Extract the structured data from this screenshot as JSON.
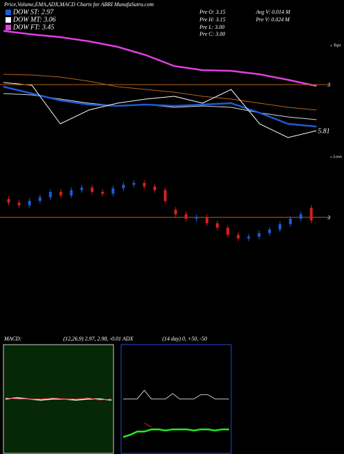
{
  "header": {
    "title": "Price,Volume,EMA,ADX,MACD Charts for ABRI MunafaSutra.com",
    "legend": [
      {
        "label": "DOW ST: 2.97",
        "color": "#1e5bd6"
      },
      {
        "label": "DOW MT: 3.06",
        "color": "#ffffff"
      },
      {
        "label": "DOW FT: 3.45",
        "color": "#e040e0"
      }
    ],
    "info": [
      "Pre  O: 3.15",
      "Pre  H: 3.15",
      "Pre  L: 3.00",
      "Pre  C: 3.00"
    ],
    "info2": [
      "Avg V: 0.014  M",
      "Pre  V: 0.024  M"
    ]
  },
  "chart_data": [
    {
      "type": "line",
      "ylim": [
        0,
        100
      ],
      "tops_label": "« Tops",
      "annotation": "5.81",
      "level_lines": [
        {
          "value": 58.5,
          "label": "3"
        }
      ],
      "level_color": "#b5651d",
      "series": [
        {
          "name": "DOW FT: 3.45",
          "color": "#e040e0",
          "width": 2.5,
          "values": [
            97.5,
            95,
            93,
            90,
            86,
            80,
            72,
            69,
            68.5,
            66,
            62,
            57.5
          ]
        },
        {
          "name": "EMA long",
          "color": "#b5651d",
          "width": 1,
          "values": [
            66,
            65.5,
            64,
            61,
            57,
            55,
            53,
            50,
            48,
            45,
            42,
            40
          ]
        },
        {
          "name": "DOW MT: 3.06",
          "color": "#dddddd",
          "width": 1,
          "values": [
            52,
            51,
            48,
            45,
            43,
            44,
            42,
            43,
            42,
            38,
            35,
            33
          ]
        },
        {
          "name": "DOW ST: 2.97",
          "color": "#1e5bd6",
          "width": 2.5,
          "values": [
            57,
            52,
            47,
            44,
            43,
            44,
            43,
            44,
            45,
            38,
            30,
            28
          ]
        },
        {
          "name": "Price",
          "color": "#ffffff",
          "width": 1,
          "values": [
            60,
            58,
            30,
            40,
            45,
            48,
            50,
            45,
            55,
            30,
            20,
            25
          ]
        }
      ]
    },
    {
      "type": "candlestick",
      "ylim": [
        0,
        100
      ],
      "lows_label": "« Lows",
      "level_lines": [
        {
          "value": 41.5,
          "label": "3"
        }
      ],
      "level_color": "#b5651d",
      "up_color": "#1e5bd6",
      "down_color": "#d62020",
      "open": [
        62,
        58,
        55,
        60,
        64,
        70,
        66,
        72,
        75,
        70,
        68,
        74,
        78,
        80,
        76,
        72,
        50,
        45,
        40,
        42,
        35,
        30,
        22,
        18,
        20,
        24,
        28,
        34,
        40,
        52
      ],
      "close": [
        58,
        55,
        60,
        64,
        70,
        66,
        72,
        75,
        70,
        68,
        74,
        78,
        80,
        76,
        72,
        60,
        45,
        40,
        42,
        35,
        30,
        22,
        18,
        20,
        24,
        28,
        34,
        40,
        45,
        38
      ],
      "high": [
        65,
        61,
        63,
        67,
        73,
        73,
        75,
        78,
        78,
        73,
        77,
        81,
        83,
        83,
        79,
        75,
        53,
        48,
        45,
        45,
        38,
        33,
        25,
        23,
        27,
        31,
        37,
        43,
        48,
        55
      ],
      "low": [
        55,
        52,
        52,
        57,
        61,
        63,
        63,
        69,
        67,
        65,
        65,
        71,
        75,
        73,
        69,
        57,
        42,
        37,
        37,
        32,
        27,
        19,
        15,
        15,
        17,
        21,
        25,
        31,
        37,
        35
      ]
    },
    {
      "type": "line",
      "title": "MACD:",
      "subtitle": "(12,26,9) 2.97, 2.98, -0.01",
      "ylim": [
        0,
        100
      ],
      "series": [
        {
          "name": "MACD",
          "color": "#ffffff",
          "width": 1.5,
          "values": [
            50,
            51,
            50,
            49,
            50,
            50,
            49,
            50,
            50,
            49
          ]
        },
        {
          "name": "Signal",
          "color": "#e02020",
          "width": 1,
          "values": [
            51,
            50,
            50,
            50,
            51,
            50,
            50,
            51,
            49,
            50
          ]
        }
      ]
    },
    {
      "type": "line",
      "title": "ADX",
      "subtitle": "(14  day) 0, +50, -50",
      "ylim": [
        0,
        100
      ],
      "series": [
        {
          "name": "ADX",
          "color": "#cccccc",
          "width": 1,
          "values": [
            50,
            50,
            50,
            58,
            50,
            50,
            50,
            55,
            50,
            50,
            50,
            54,
            54,
            50,
            50,
            50
          ]
        },
        {
          "name": "+DI",
          "color": "#22ee22",
          "width": 2.5,
          "values": [
            15,
            17,
            20,
            20,
            22,
            22,
            21,
            22,
            22,
            22,
            21,
            22,
            22,
            21,
            22,
            22
          ]
        },
        {
          "name": "-DI",
          "color": "#e02020",
          "width": 1,
          "values": [
            null,
            null,
            null,
            28,
            24,
            null,
            null,
            null,
            null,
            null,
            null,
            null,
            null,
            null,
            null,
            null
          ]
        }
      ]
    }
  ]
}
